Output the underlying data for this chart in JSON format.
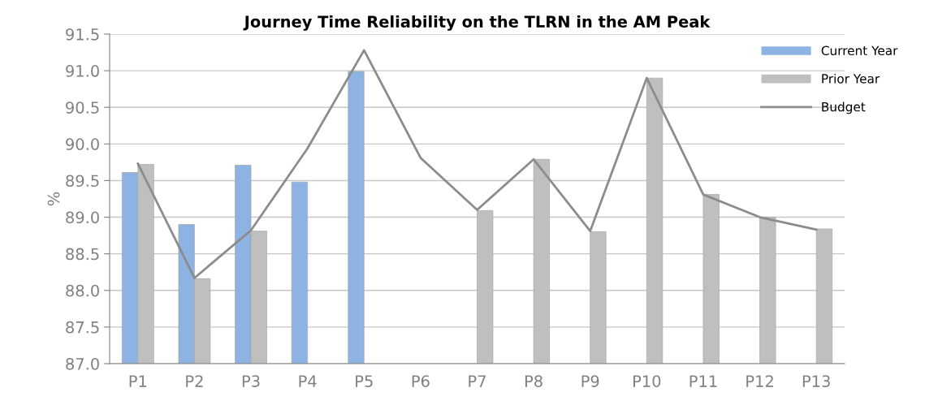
{
  "chart_data": {
    "type": "bar",
    "title": "Journey Time Reliability on the TLRN in the AM Peak",
    "ylabel": "%",
    "categories": [
      "P1",
      "P2",
      "P3",
      "P4",
      "P5",
      "P6",
      "P7",
      "P8",
      "P9",
      "P10",
      "P11",
      "P12",
      "P13"
    ],
    "series": [
      {
        "name": "Current Year",
        "color": "#8db3e2",
        "values": [
          89.61,
          88.9,
          89.71,
          89.48,
          90.99,
          null,
          null,
          null,
          null,
          null,
          null,
          null,
          null
        ]
      },
      {
        "name": "Prior Year",
        "color": "#bfbfbf",
        "values": [
          89.72,
          88.16,
          88.81,
          null,
          null,
          null,
          89.09,
          89.79,
          88.8,
          90.9,
          89.31,
          89.0,
          88.84
        ]
      },
      {
        "name": "Budget",
        "type": "line",
        "color": "#8c8c8c",
        "values": [
          89.73,
          88.17,
          88.82,
          89.94,
          91.28,
          89.81,
          89.1,
          89.79,
          88.81,
          90.9,
          89.31,
          89.0,
          88.83
        ]
      }
    ],
    "ylim": [
      87.0,
      91.5
    ],
    "yticks": [
      {
        "value": 87.0,
        "label": "87.0"
      },
      {
        "value": 87.5,
        "label": "87.5"
      },
      {
        "value": 88.0,
        "label": "88.0"
      },
      {
        "value": 88.5,
        "label": "88.5"
      },
      {
        "value": 89.0,
        "label": "89.0"
      },
      {
        "value": 89.5,
        "label": "89.5"
      },
      {
        "value": 90.0,
        "label": "90.0"
      },
      {
        "value": 90.5,
        "label": "90.5"
      },
      {
        "value": 91.0,
        "label": "91.0"
      },
      {
        "value": 91.5,
        "label": "91.5"
      }
    ],
    "grid": "y",
    "legend": "top right",
    "marker": "none",
    "line_style": "solid"
  }
}
